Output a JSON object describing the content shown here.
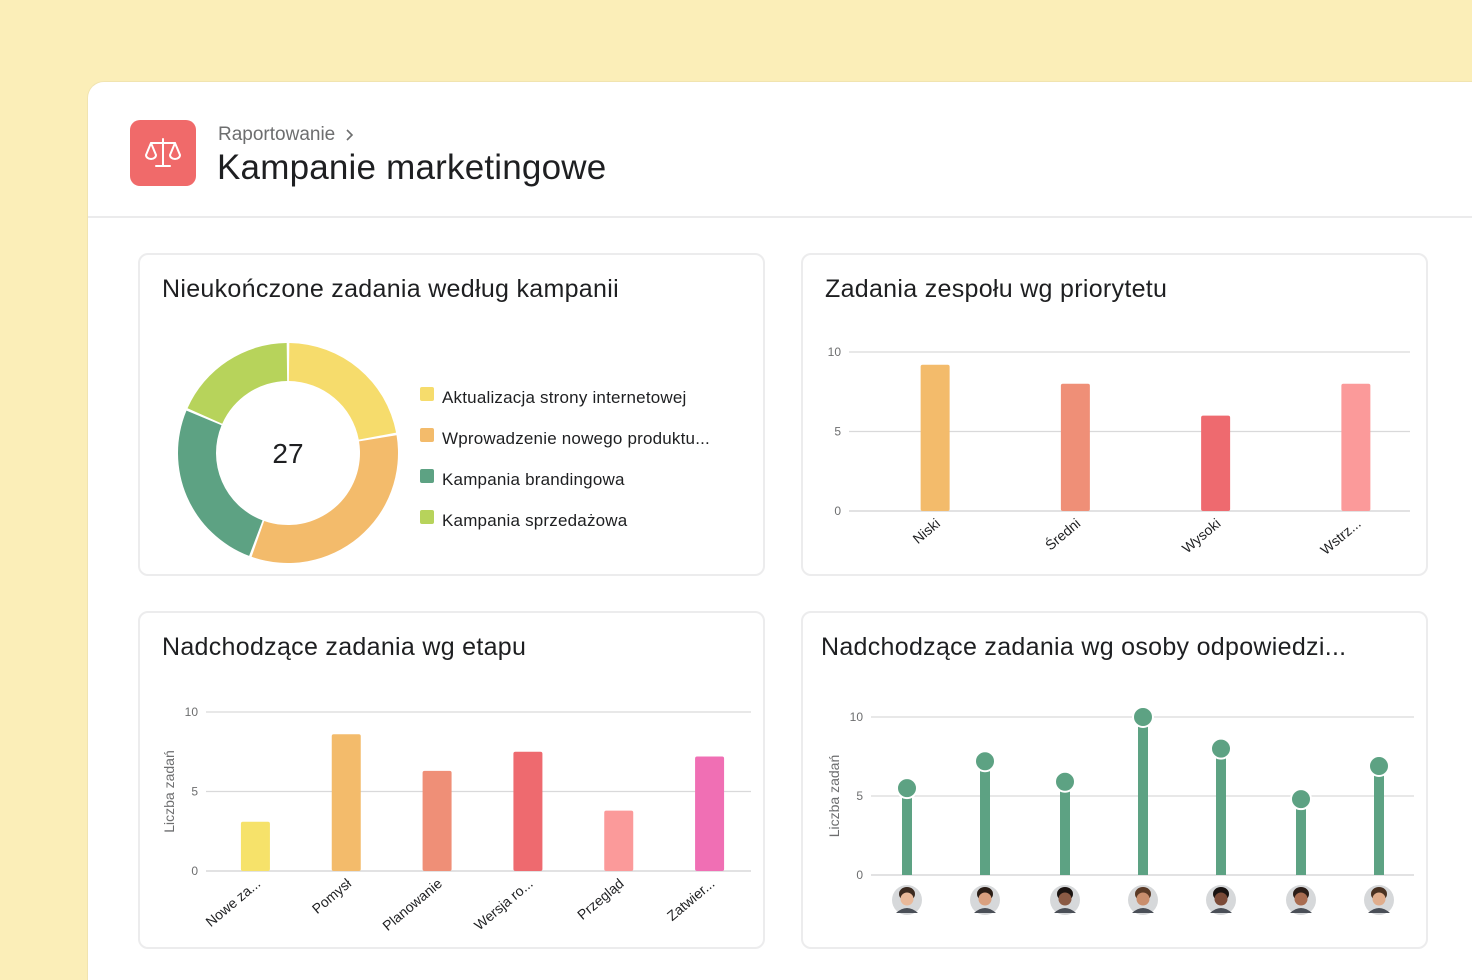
{
  "header": {
    "breadcrumb": "Raportowanie",
    "title": "Kampanie marketingowe",
    "icon": "scale-icon",
    "icon_color": "#f06a6a"
  },
  "cards": {
    "donut": {
      "title": "Nieukończone zadania według kampanii"
    },
    "priority": {
      "title": "Zadania zespołu wg priorytetu"
    },
    "stage": {
      "title": "Nadchodzące zadania wg etapu"
    },
    "assignee": {
      "title": "Nadchodzące zadania wg osoby odpowiedzi..."
    }
  },
  "chart_data": [
    {
      "type": "pie",
      "variant": "donut",
      "total_label": "27",
      "slices": [
        {
          "label": "Aktualizacja strony internetowej",
          "value": 6,
          "color": "#f6dc6c"
        },
        {
          "label": "Wprowadzenie nowego produktu...",
          "value": 9,
          "color": "#f3bb6b"
        },
        {
          "label": "Kampania brandingowa",
          "value": 7,
          "color": "#5da283"
        },
        {
          "label": "Kampania sprzedażowa",
          "value": 5,
          "color": "#b7d35b"
        }
      ],
      "legend_position": "right"
    },
    {
      "type": "bar",
      "categories": [
        "Niski",
        "Średni",
        "Wysoki",
        "Wstrz..."
      ],
      "values": [
        9.2,
        8,
        6,
        8
      ],
      "colors": [
        "#f3bb6b",
        "#ef8f77",
        "#ee6a6f",
        "#fb9a9a"
      ],
      "yticks": [
        0,
        5,
        10
      ],
      "ylim": [
        0,
        10
      ],
      "grid": true
    },
    {
      "type": "bar",
      "categories": [
        "Nowe za...",
        "Pomysł",
        "Planowanie",
        "Wersja ro...",
        "Przegląd",
        "Zatwier..."
      ],
      "values": [
        3.1,
        8.6,
        6.3,
        7.5,
        3.8,
        7.2
      ],
      "colors": [
        "#f6e26a",
        "#f3bb6b",
        "#ef8f77",
        "#ee6a6f",
        "#fb9a9a",
        "#f06fb4"
      ],
      "ylabel": "Liczba zadań",
      "yticks": [
        0,
        5,
        10
      ],
      "ylim": [
        0,
        10
      ],
      "grid": true
    },
    {
      "type": "bar",
      "variant": "lollipop",
      "categories": [
        "avatar-1",
        "avatar-2",
        "avatar-3",
        "avatar-4",
        "avatar-5",
        "avatar-6",
        "avatar-7"
      ],
      "values": [
        5.5,
        7.2,
        5.9,
        10,
        8,
        4.8,
        6.9
      ],
      "color": "#5da283",
      "ylabel": "Liczba zadań",
      "yticks": [
        0,
        5,
        10
      ],
      "ylim": [
        0,
        10
      ],
      "grid": true
    }
  ]
}
